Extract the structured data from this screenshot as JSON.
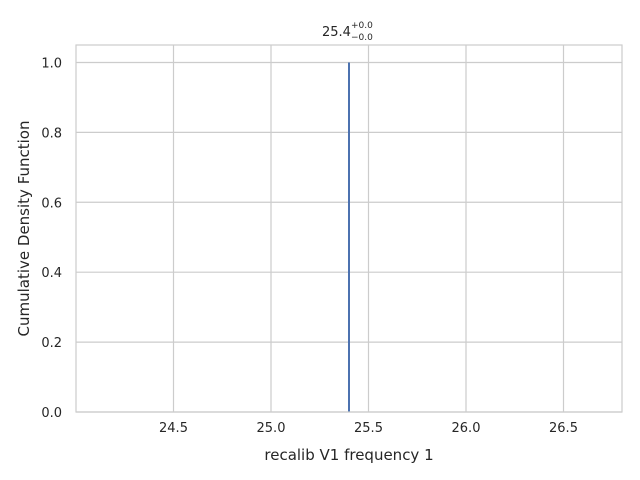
{
  "chart_data": {
    "type": "line",
    "title": {
      "main": "25.4",
      "superscript": "+0.0",
      "subscript": "−0.0"
    },
    "xlabel": "recalib V1 frequency 1",
    "ylabel": "Cumulative Density Function",
    "xlim": [
      24.0,
      26.8
    ],
    "ylim": [
      0.0,
      1.05
    ],
    "x_ticks": [
      24.5,
      25.0,
      25.5,
      26.0,
      26.5
    ],
    "x_tick_labels": [
      "24.5",
      "25.0",
      "25.5",
      "26.0",
      "26.5"
    ],
    "y_ticks": [
      0.0,
      0.2,
      0.4,
      0.6,
      0.8,
      1.0
    ],
    "y_tick_labels": [
      "0.0",
      "0.2",
      "0.4",
      "0.6",
      "0.8",
      "1.0"
    ],
    "grid": true,
    "series": [
      {
        "color": "#4c72b0",
        "x": [
          25.4,
          25.4
        ],
        "y": [
          0.0,
          1.0
        ]
      }
    ]
  }
}
